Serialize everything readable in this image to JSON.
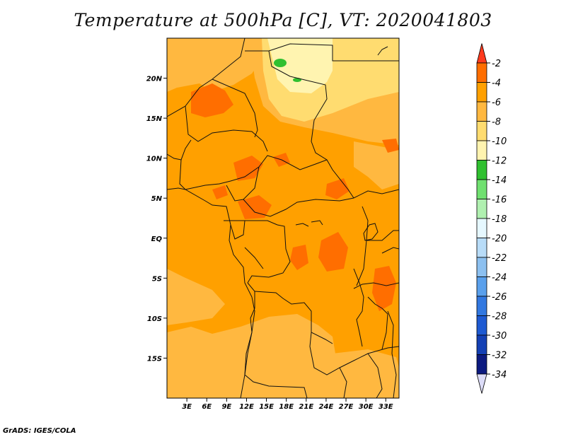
{
  "title": "Temperature at 500hPa [C], VT: 2020041803",
  "footer": "GrADS: IGES/COLA",
  "map": {
    "lon_range": [
      0,
      35
    ],
    "lat_range": [
      -20,
      25
    ],
    "lat_ticks": [
      {
        "value": 20,
        "label": "20N"
      },
      {
        "value": 15,
        "label": "15N"
      },
      {
        "value": 10,
        "label": "10N"
      },
      {
        "value": 5,
        "label": "5N"
      },
      {
        "value": 0,
        "label": "EQ"
      },
      {
        "value": -5,
        "label": "5S"
      },
      {
        "value": -10,
        "label": "10S"
      },
      {
        "value": -15,
        "label": "15S"
      }
    ],
    "lon_ticks": [
      {
        "value": 3,
        "label": "3E"
      },
      {
        "value": 6,
        "label": "6E"
      },
      {
        "value": 9,
        "label": "9E"
      },
      {
        "value": 12,
        "label": "12E"
      },
      {
        "value": 15,
        "label": "15E"
      },
      {
        "value": 18,
        "label": "18E"
      },
      {
        "value": 21,
        "label": "21E"
      },
      {
        "value": 24,
        "label": "24E"
      },
      {
        "value": 27,
        "label": "27E"
      },
      {
        "value": 30,
        "label": "30E"
      },
      {
        "value": 33,
        "label": "33E"
      }
    ]
  },
  "colorbar": {
    "labels": [
      "-2",
      "-4",
      "-6",
      "-8",
      "-10",
      "-12",
      "-14",
      "-16",
      "-18",
      "-20",
      "-22",
      "-24",
      "-26",
      "-28",
      "-30",
      "-32",
      "-34"
    ],
    "colors": [
      "#ff3a1e",
      "#ff6e00",
      "#ffa000",
      "#ffb840",
      "#ffdc70",
      "#fff4b0",
      "#30c030",
      "#70e070",
      "#b0f0b0",
      "#e6f8ff",
      "#b8dcf8",
      "#8cc0f0",
      "#5aa0ec",
      "#3278e0",
      "#1e5ad2",
      "#1440b4",
      "#0c1a80",
      "#dcdcf8"
    ]
  }
}
